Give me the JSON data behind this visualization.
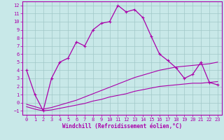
{
  "xlabel": "Windchill (Refroidissement éolien,°C)",
  "xlim": [
    -0.5,
    23.5
  ],
  "ylim": [
    -1.5,
    12.5
  ],
  "xticks": [
    0,
    1,
    2,
    3,
    4,
    5,
    6,
    7,
    8,
    9,
    10,
    11,
    12,
    13,
    14,
    15,
    16,
    17,
    18,
    19,
    20,
    21,
    22,
    23
  ],
  "yticks": [
    -1,
    0,
    1,
    2,
    3,
    4,
    5,
    6,
    7,
    8,
    9,
    10,
    11,
    12
  ],
  "bg_color": "#c8e8e8",
  "grid_color": "#a0c8c8",
  "line_color": "#aa00aa",
  "line1_x": [
    0,
    1,
    2,
    3,
    4,
    5,
    6,
    7,
    8,
    9,
    10,
    11,
    12,
    13,
    14,
    15,
    16,
    17,
    18,
    19,
    20,
    21,
    22,
    23
  ],
  "line1_y": [
    4.0,
    1.0,
    -1.0,
    3.0,
    5.0,
    5.5,
    7.5,
    7.0,
    9.0,
    9.8,
    10.0,
    12.0,
    11.2,
    11.5,
    10.5,
    8.2,
    6.0,
    5.2,
    4.3,
    3.0,
    3.5,
    5.0,
    2.5,
    2.2
  ],
  "line2_x": [
    0,
    1,
    2,
    3,
    4,
    5,
    6,
    7,
    8,
    9,
    10,
    11,
    12,
    13,
    14,
    15,
    16,
    17,
    18,
    19,
    20,
    21,
    22,
    23
  ],
  "line2_y": [
    -0.5,
    -0.8,
    -1.0,
    -0.9,
    -0.7,
    -0.5,
    -0.3,
    -0.1,
    0.2,
    0.4,
    0.7,
    0.9,
    1.1,
    1.4,
    1.6,
    1.8,
    2.0,
    2.1,
    2.2,
    2.3,
    2.4,
    2.4,
    2.5,
    2.6
  ],
  "line3_x": [
    0,
    1,
    2,
    3,
    4,
    5,
    6,
    7,
    8,
    9,
    10,
    11,
    12,
    13,
    14,
    15,
    16,
    17,
    18,
    19,
    20,
    21,
    22,
    23
  ],
  "line3_y": [
    -0.2,
    -0.5,
    -0.8,
    -0.6,
    -0.3,
    0.0,
    0.3,
    0.7,
    1.1,
    1.5,
    1.9,
    2.3,
    2.7,
    3.1,
    3.4,
    3.7,
    4.0,
    4.2,
    4.4,
    4.5,
    4.6,
    4.7,
    4.8,
    5.0
  ]
}
